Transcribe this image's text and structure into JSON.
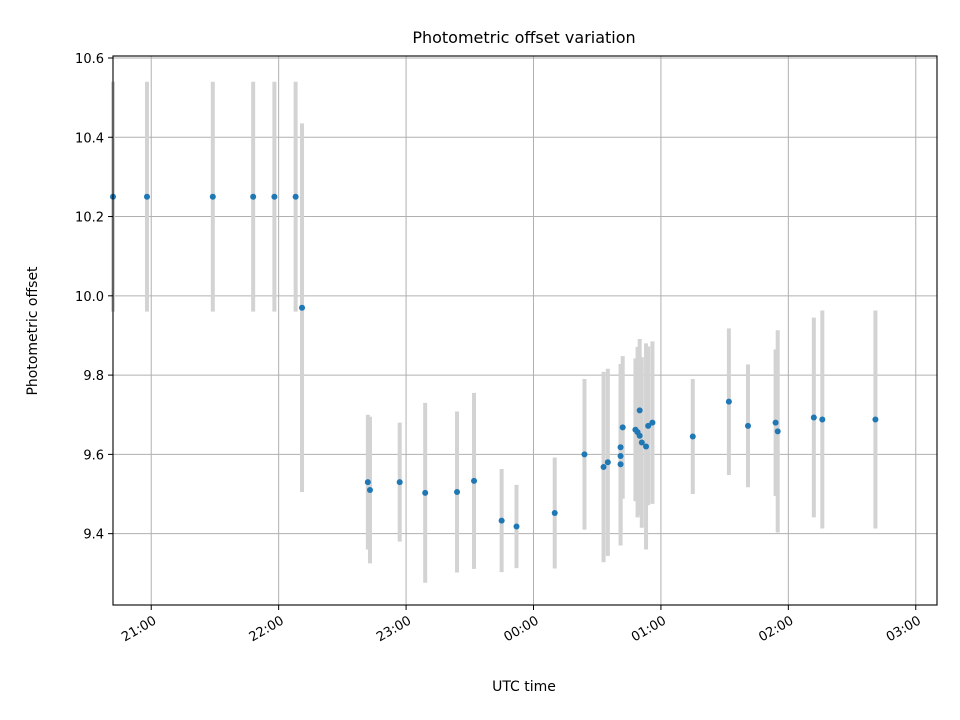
{
  "colors": {
    "point": "#1f77b4",
    "errorbar": "#d3d3d3",
    "grid": "#b0b0b0",
    "axis": "#000000",
    "background": "#ffffff"
  },
  "chart_data": {
    "type": "scatter",
    "title": "Photometric offset variation",
    "xlabel": "UTC time",
    "ylabel": "Photometric offset",
    "x_axis_kind": "time",
    "xlim": [
      "20:42",
      "03:10"
    ],
    "ylim": [
      9.22,
      10.605
    ],
    "x_ticks": [
      "21:00",
      "22:00",
      "23:00",
      "00:00",
      "01:00",
      "02:00",
      "03:00"
    ],
    "y_ticks": [
      "9.4",
      "9.6",
      "9.8",
      "10.0",
      "10.2",
      "10.4",
      "10.6"
    ],
    "grid": true,
    "legend": "none",
    "series": [
      {
        "x": [
          "20:42",
          "20:58",
          "21:29",
          "21:48",
          "21:58",
          "22:08",
          "22:11",
          "22:42",
          "22:43",
          "22:57",
          "23:09",
          "23:24",
          "23:32",
          "23:45",
          "23:52",
          "00:10",
          "00:24",
          "00:33",
          "00:35",
          "00:41",
          "00:41",
          "00:41",
          "00:42",
          "00:48",
          "00:49",
          "00:50",
          "00:50",
          "00:51",
          "00:53",
          "00:54",
          "00:56",
          "01:15",
          "01:32",
          "01:41",
          "01:54",
          "01:55",
          "02:12",
          "02:16",
          "02:41"
        ],
        "y": [
          10.25,
          10.25,
          10.25,
          10.25,
          10.25,
          10.25,
          9.97,
          9.53,
          9.51,
          9.53,
          9.503,
          9.505,
          9.533,
          9.433,
          9.418,
          9.452,
          9.6,
          9.568,
          9.58,
          9.575,
          9.596,
          9.618,
          9.668,
          9.662,
          9.656,
          9.711,
          9.647,
          9.63,
          9.62,
          9.672,
          9.68,
          9.645,
          9.733,
          9.672,
          9.68,
          9.658,
          9.693,
          9.688,
          9.688
        ],
        "err": [
          0.29,
          0.29,
          0.29,
          0.29,
          0.29,
          0.29,
          0.465,
          0.17,
          0.185,
          0.15,
          0.227,
          0.203,
          0.222,
          0.13,
          0.105,
          0.14,
          0.19,
          0.24,
          0.236,
          0.205,
          0.19,
          0.21,
          0.18,
          0.18,
          0.215,
          0.18,
          0.2,
          0.215,
          0.26,
          0.2,
          0.205,
          0.145,
          0.185,
          0.155,
          0.185,
          0.255,
          0.252,
          0.275,
          0.275
        ]
      }
    ]
  }
}
